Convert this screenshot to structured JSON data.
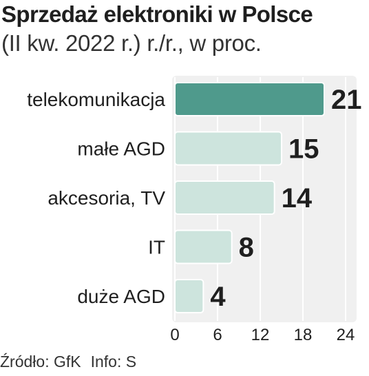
{
  "title": "Sprzedaż elektroniki w Polsce",
  "subtitle": "(II kw. 2022 r.) r./r., w proc.",
  "source": "Źródło: GfK",
  "info": "Info: S",
  "colors": {
    "highlight": "#4f9a8c",
    "bar": "#cde4dd",
    "bar_stroke": "#ffffff",
    "panel": "#f0f0f0",
    "grid": "#ffffff",
    "text": "#1f1f1f"
  },
  "chart_data": {
    "type": "bar",
    "orientation": "horizontal",
    "categories": [
      "telekomunikacja",
      "małe AGD",
      "akcesoria, TV",
      "IT",
      "duże AGD"
    ],
    "values": [
      21,
      15,
      14,
      8,
      4
    ],
    "value_labels": [
      "21",
      "15",
      "14",
      "8",
      "4"
    ],
    "highlight_index": 0,
    "xlim": [
      0,
      24
    ],
    "xticks": [
      0,
      6,
      12,
      18,
      24
    ],
    "xtick_labels": [
      "0",
      "6",
      "12",
      "18",
      "24"
    ],
    "grid": true
  }
}
